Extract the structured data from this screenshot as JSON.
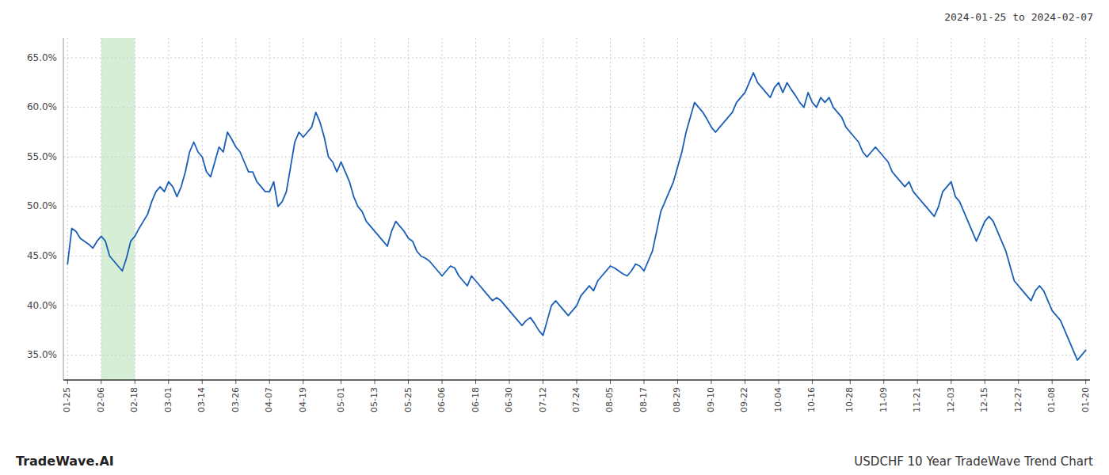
{
  "chart_data": {
    "type": "line",
    "title": "2024-01-25 to 2024-02-07",
    "annotations": [
      "TradeWave.AI",
      "USDCHF 10 Year TradeWave Trend Chart"
    ],
    "color": "#1a5eb8",
    "grid": true,
    "highlight": {
      "from": "02-06",
      "to": "02-18",
      "color": "#d6edd6"
    },
    "ylim": [
      32.5,
      67.0
    ],
    "yticks": [
      {
        "value": 35.0,
        "label": "35.0%"
      },
      {
        "value": 40.0,
        "label": "40.0%"
      },
      {
        "value": 45.0,
        "label": "45.0%"
      },
      {
        "value": 50.0,
        "label": "50.0%"
      },
      {
        "value": 55.0,
        "label": "55.0%"
      },
      {
        "value": 60.0,
        "label": "60.0%"
      },
      {
        "value": 65.0,
        "label": "65.0%"
      }
    ],
    "categories": [
      "01-25",
      null,
      null,
      null,
      null,
      null,
      null,
      null,
      "02-06",
      null,
      null,
      null,
      null,
      null,
      null,
      null,
      "02-18",
      null,
      null,
      null,
      null,
      null,
      null,
      null,
      "03-01",
      null,
      null,
      null,
      null,
      null,
      null,
      null,
      "03-14",
      null,
      null,
      null,
      null,
      null,
      null,
      null,
      "03-26",
      null,
      null,
      null,
      null,
      null,
      null,
      null,
      "04-07",
      null,
      null,
      null,
      null,
      null,
      null,
      null,
      "04-19",
      null,
      null,
      null,
      null,
      null,
      null,
      null,
      null,
      "05-01",
      null,
      null,
      null,
      null,
      null,
      null,
      null,
      "05-13",
      null,
      null,
      null,
      null,
      null,
      null,
      null,
      "05-25",
      null,
      null,
      null,
      null,
      null,
      null,
      null,
      "06-06",
      null,
      null,
      null,
      null,
      null,
      null,
      null,
      "06-18",
      null,
      null,
      null,
      null,
      null,
      null,
      null,
      "06-30",
      null,
      null,
      null,
      null,
      null,
      null,
      null,
      "07-12",
      null,
      null,
      null,
      null,
      null,
      null,
      null,
      "07-24",
      null,
      null,
      null,
      null,
      null,
      null,
      null,
      "08-05",
      null,
      null,
      null,
      null,
      null,
      null,
      null,
      "08-17",
      null,
      null,
      null,
      null,
      null,
      null,
      null,
      "08-29",
      null,
      null,
      null,
      null,
      null,
      null,
      null,
      "09-10",
      null,
      null,
      null,
      null,
      null,
      null,
      null,
      "09-22",
      null,
      null,
      null,
      null,
      null,
      null,
      null,
      "10-04",
      null,
      null,
      null,
      null,
      null,
      null,
      null,
      "10-16",
      null,
      null,
      null,
      null,
      null,
      null,
      null,
      null,
      "10-28",
      null,
      null,
      null,
      null,
      null,
      null,
      null,
      "11-09",
      null,
      null,
      null,
      null,
      null,
      null,
      null,
      "11-21",
      null,
      null,
      null,
      null,
      null,
      null,
      null,
      "12-03",
      null,
      null,
      null,
      null,
      null,
      null,
      null,
      "12-15",
      null,
      null,
      null,
      null,
      null,
      null,
      null,
      "12-27",
      null,
      null,
      null,
      null,
      null,
      null,
      null,
      "01-08",
      null,
      null,
      null,
      null,
      null,
      null,
      null,
      "01-20"
    ],
    "values": [
      44.2,
      47.8,
      47.5,
      46.8,
      46.5,
      46.2,
      45.8,
      46.5,
      47.0,
      46.5,
      45.0,
      44.5,
      44.0,
      43.5,
      44.8,
      46.5,
      47.0,
      47.8,
      48.5,
      49.2,
      50.5,
      51.5,
      52.0,
      51.5,
      52.5,
      52.0,
      51.0,
      52.0,
      53.5,
      55.5,
      56.5,
      55.5,
      55.0,
      53.5,
      53.0,
      54.5,
      56.0,
      55.5,
      57.5,
      56.8,
      56.0,
      55.5,
      54.5,
      53.5,
      53.5,
      52.5,
      52.0,
      51.5,
      51.5,
      52.5,
      50.0,
      50.5,
      51.5,
      54.0,
      56.5,
      57.5,
      57.0,
      57.5,
      58.0,
      59.5,
      58.5,
      57.0,
      55.0,
      54.5,
      53.5,
      54.5,
      53.5,
      52.5,
      51.0,
      50.0,
      49.5,
      48.5,
      48.0,
      47.5,
      47.0,
      46.5,
      46.0,
      47.5,
      48.5,
      48.0,
      47.5,
      46.8,
      46.5,
      45.5,
      45.0,
      44.8,
      44.5,
      44.0,
      43.5,
      43.0,
      43.5,
      44.0,
      43.8,
      43.0,
      42.5,
      42.0,
      43.0,
      42.5,
      42.0,
      41.5,
      41.0,
      40.5,
      40.8,
      40.5,
      40.0,
      39.5,
      39.0,
      38.5,
      38.0,
      38.5,
      38.8,
      38.2,
      37.5,
      37.0,
      38.5,
      40.0,
      40.5,
      40.0,
      39.5,
      39.0,
      39.5,
      40.0,
      41.0,
      41.5,
      42.0,
      41.5,
      42.5,
      43.0,
      43.5,
      44.0,
      43.8,
      43.5,
      43.2,
      43.0,
      43.5,
      44.2,
      44.0,
      43.5,
      44.5,
      45.5,
      47.5,
      49.5,
      50.5,
      51.5,
      52.5,
      54.0,
      55.5,
      57.5,
      59.0,
      60.5,
      60.0,
      59.5,
      58.8,
      58.0,
      57.5,
      58.0,
      58.5,
      59.0,
      59.5,
      60.5,
      61.0,
      61.5,
      62.5,
      63.5,
      62.5,
      62.0,
      61.5,
      61.0,
      62.0,
      62.5,
      61.5,
      62.5,
      61.8,
      61.2,
      60.5,
      60.0,
      61.5,
      60.5,
      60.0,
      61.0,
      60.5,
      61.0,
      60.0,
      59.5,
      59.0,
      58.0,
      57.5,
      57.0,
      56.5,
      55.5,
      55.0,
      55.5,
      56.0,
      55.5,
      55.0,
      54.5,
      53.5,
      53.0,
      52.5,
      52.0,
      52.5,
      51.5,
      51.0,
      50.5,
      50.0,
      49.5,
      49.0,
      50.0,
      51.5,
      52.0,
      52.5,
      51.0,
      50.5,
      49.5,
      48.5,
      47.5,
      46.5,
      47.5,
      48.5,
      49.0,
      48.5,
      47.5,
      46.5,
      45.5,
      44.0,
      42.5,
      42.0,
      41.5,
      41.0,
      40.5,
      41.5,
      42.0,
      41.5,
      40.5,
      39.5,
      39.0,
      38.5,
      37.5,
      36.5,
      35.5,
      34.5,
      35.0,
      35.5
    ]
  }
}
